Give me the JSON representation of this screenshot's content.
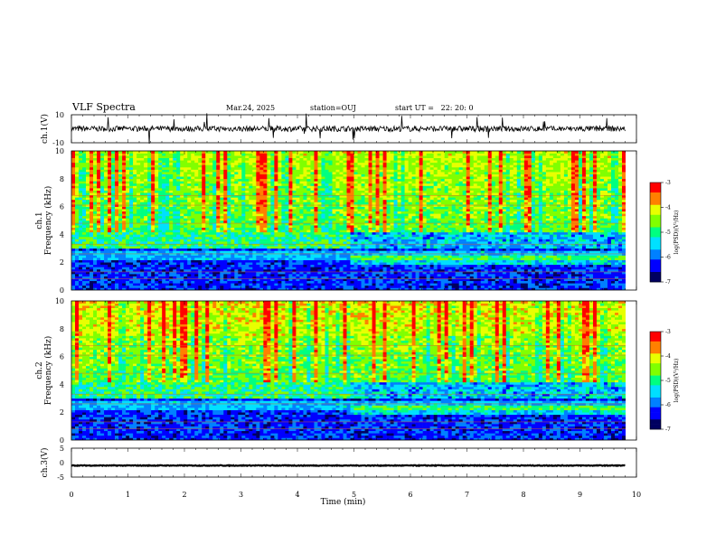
{
  "header": {
    "title": "VLF Spectra",
    "date": "Mar.24, 2025",
    "station": "station=OUJ",
    "start": "start UT =   22: 20: 0"
  },
  "colors": {
    "waveform": "#000000",
    "colormap": [
      "#000060",
      "#0000ff",
      "#0080ff",
      "#00e0ff",
      "#00ff80",
      "#80ff00",
      "#e8ff00",
      "#ff8000",
      "#ff0000"
    ]
  },
  "chart_data": [
    {
      "type": "line",
      "panel": "ch1-waveform",
      "ylabel": "ch.1(V)",
      "ylim": [
        -10,
        10
      ],
      "yticks": [
        "10",
        "-10"
      ],
      "baseline": 0
    },
    {
      "type": "heatmap",
      "panel": "ch1-spectrogram",
      "ylabel": "ch.1\nFrequency (kHz)",
      "ylim": [
        0,
        10
      ],
      "yticks": [
        "0",
        "2",
        "4",
        "6",
        "8",
        "10"
      ],
      "colorbar": {
        "label": "log(PSD)(V²/Hz)",
        "range": [
          -7,
          -3
        ],
        "ticks": [
          "-3",
          "-4",
          "-5",
          "-6",
          "-7"
        ]
      }
    },
    {
      "type": "heatmap",
      "panel": "ch2-spectrogram",
      "ylabel": "ch.2\nFrequency (kHz)",
      "ylim": [
        0,
        10
      ],
      "yticks": [
        "0",
        "2",
        "4",
        "6",
        "8",
        "10"
      ],
      "colorbar": {
        "label": "log(PSD)(V²/Hz)",
        "range": [
          -7,
          -3
        ],
        "ticks": [
          "-3",
          "-4",
          "-5",
          "-6",
          "-7"
        ]
      }
    },
    {
      "type": "line",
      "panel": "ch3-waveform",
      "ylabel": "ch.3(V)",
      "ylim": [
        -5,
        5
      ],
      "yticks": [
        "5",
        "0",
        "-5"
      ],
      "baseline": -1
    }
  ],
  "xaxis": {
    "label": "Time (min)",
    "xlim": [
      0,
      10
    ],
    "ticks": [
      "0",
      "1",
      "2",
      "3",
      "4",
      "5",
      "6",
      "7",
      "8",
      "9",
      "10"
    ]
  }
}
